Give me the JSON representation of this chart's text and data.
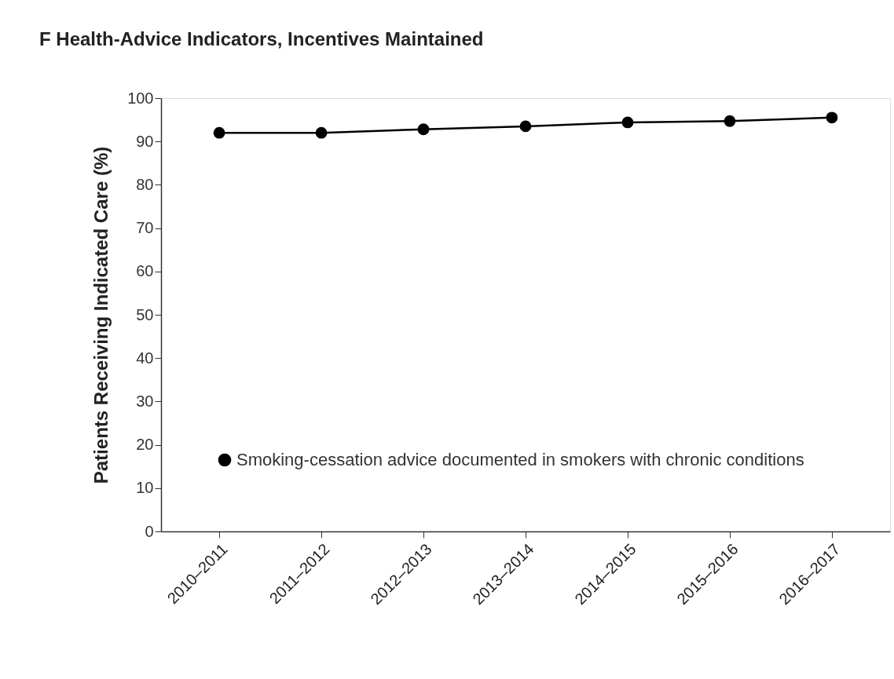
{
  "chart_data": {
    "type": "line",
    "title": "F Health-Advice Indicators, Incentives Maintained",
    "ylabel": "Patients Receiving Indicated Care (%)",
    "categories": [
      "2010–2011",
      "2011–2012",
      "2012–2013",
      "2013–2014",
      "2014–2015",
      "2015–2016",
      "2016–2017"
    ],
    "series": [
      {
        "name": "Smoking-cessation advice documented in smokers with chronic conditions",
        "color": "#000000",
        "values": [
          92,
          92,
          92.8,
          93.5,
          94.4,
          94.7,
          95.5
        ]
      }
    ],
    "ylim": [
      0,
      100
    ],
    "yticks": [
      0,
      10,
      20,
      30,
      40,
      50,
      60,
      70,
      80,
      90,
      100
    ],
    "grid": false,
    "legend": "bottom left",
    "marker": "circle",
    "line_style": "solid"
  }
}
